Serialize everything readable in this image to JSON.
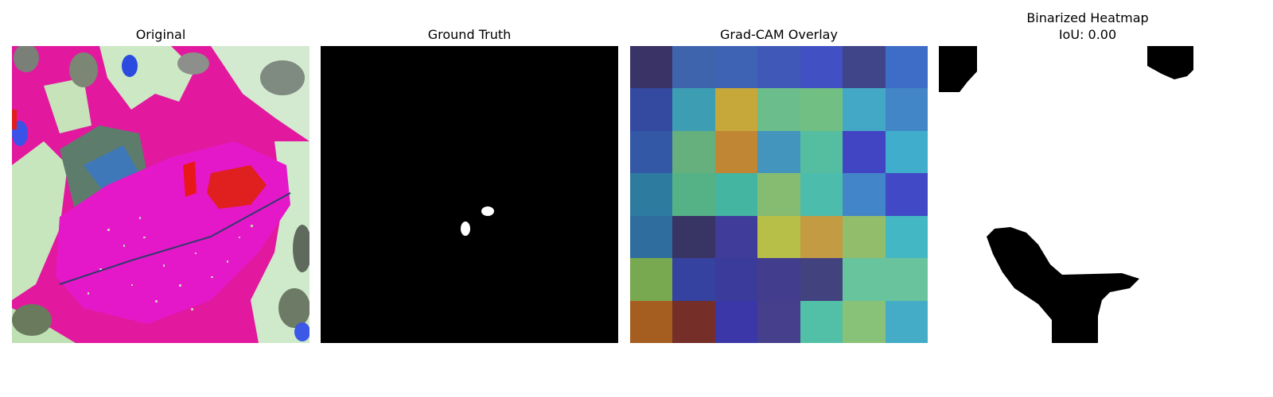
{
  "panels": {
    "original": {
      "title": "Original"
    },
    "ground_truth": {
      "title": "Ground Truth"
    },
    "gradcam": {
      "title": "Grad-CAM Overlay",
      "cells": [
        "#3a3366",
        "#3e64ad",
        "#3e62b4",
        "#4059b8",
        "#4150c2",
        "#3f4588",
        "#3e6dc7",
        "#3449a0",
        "#3d9db3",
        "#c6a73a",
        "#6bbd8b",
        "#71bf82",
        "#43a8c6",
        "#4286c7",
        "#3358a6",
        "#66b07d",
        "#c18633",
        "#4495bd",
        "#56bea0",
        "#4144c3",
        "#3fadcb",
        "#2e7ba0",
        "#55b287",
        "#44b5a0",
        "#86bc72",
        "#4cbcac",
        "#4385c9",
        "#4249c6",
        "#2f6d9e",
        "#383463",
        "#3f3c9a",
        "#b8bf48",
        "#c39b43",
        "#92bd6b",
        "#44b7c5",
        "#78a84f",
        "#3542a0",
        "#3b3b9b",
        "#433d8e",
        "#42427f",
        "#68c49d",
        "#69c49e",
        "#a55d20",
        "#762e28",
        "#3b37a8",
        "#453f8c",
        "#52c0a6",
        "#88c279",
        "#45acc8"
      ]
    },
    "binarized": {
      "title": "Binarized Heatmap",
      "iou": "IoU: 0.00"
    }
  }
}
